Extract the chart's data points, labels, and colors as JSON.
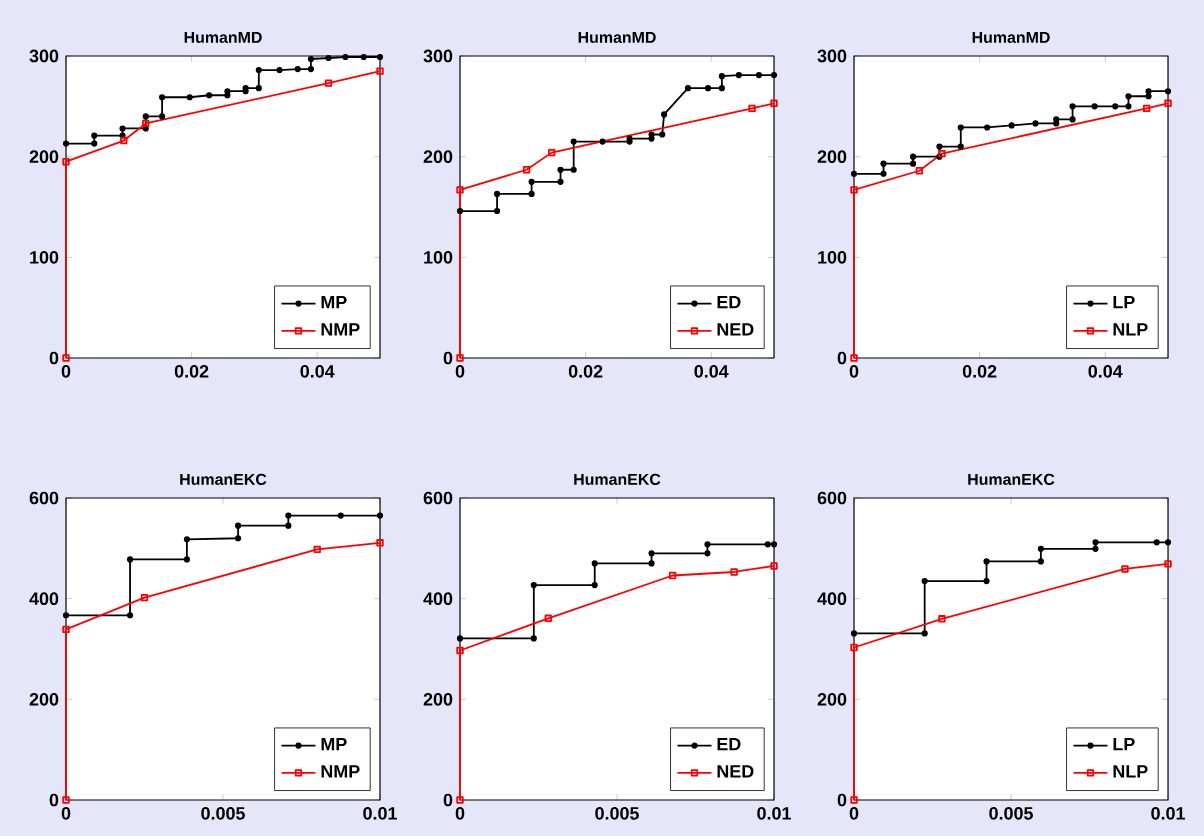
{
  "chart_data": [
    {
      "type": "line",
      "title": "HumanMD",
      "xlim": [
        0,
        0.05
      ],
      "ylim": [
        0,
        300
      ],
      "xticks": [
        0,
        0.02,
        0.04
      ],
      "yticks": [
        0,
        100,
        200,
        300
      ],
      "legend": "bottom right",
      "series": [
        {
          "name": "MP",
          "color": "#000000",
          "marker": "circle",
          "x": [
            0,
            0.0045,
            0.0045,
            0.009,
            0.009,
            0.0127,
            0.0127,
            0.0153,
            0.0153,
            0.0197,
            0.0228,
            0.0257,
            0.0257,
            0.0286,
            0.0286,
            0.0307,
            0.0307,
            0.034,
            0.0369,
            0.039,
            0.039,
            0.0418,
            0.0445,
            0.0474,
            0.05
          ],
          "values": [
            213,
            213,
            221,
            221,
            228,
            228,
            240,
            240,
            259,
            259,
            261,
            261,
            265,
            265,
            268,
            268,
            286,
            286,
            287,
            287,
            297,
            298,
            299,
            299,
            299
          ]
        },
        {
          "name": "NMP",
          "color": "#ff0000",
          "marker": "square",
          "x": [
            0,
            0,
            0.0092,
            0.0127,
            0.0418,
            0.05
          ],
          "values": [
            0,
            195,
            216,
            233,
            273,
            285
          ]
        }
      ]
    },
    {
      "type": "line",
      "title": "HumanMD",
      "xlim": [
        0,
        0.05
      ],
      "ylim": [
        0,
        300
      ],
      "xticks": [
        0,
        0.02,
        0.04
      ],
      "yticks": [
        0,
        100,
        200,
        300
      ],
      "legend": "bottom right",
      "series": [
        {
          "name": "ED",
          "color": "#000000",
          "marker": "circle",
          "x": [
            0,
            0.0059,
            0.0059,
            0.0114,
            0.0114,
            0.016,
            0.016,
            0.0181,
            0.0181,
            0.0227,
            0.027,
            0.027,
            0.0305,
            0.0305,
            0.0322,
            0.0325,
            0.0363,
            0.0395,
            0.0417,
            0.0417,
            0.0444,
            0.0476,
            0.05
          ],
          "values": [
            146,
            146,
            163,
            163,
            175,
            175,
            187,
            187,
            215,
            215,
            215,
            218,
            218,
            222,
            222,
            242,
            268,
            268,
            268,
            280,
            281,
            281,
            281
          ]
        },
        {
          "name": "NED",
          "color": "#ff0000",
          "marker": "square",
          "x": [
            0,
            0,
            0.0106,
            0.0146,
            0.0465,
            0.05
          ],
          "values": [
            0,
            167,
            187,
            204,
            248,
            253
          ]
        }
      ]
    },
    {
      "type": "line",
      "title": "HumanMD",
      "xlim": [
        0,
        0.05
      ],
      "ylim": [
        0,
        300
      ],
      "xticks": [
        0,
        0.02,
        0.04
      ],
      "yticks": [
        0,
        100,
        200,
        300
      ],
      "legend": "bottom right",
      "series": [
        {
          "name": "LP",
          "color": "#000000",
          "marker": "circle",
          "x": [
            0,
            0.0047,
            0.0047,
            0.0094,
            0.0094,
            0.0136,
            0.0136,
            0.017,
            0.017,
            0.0212,
            0.0251,
            0.0289,
            0.0322,
            0.0322,
            0.0348,
            0.0348,
            0.0383,
            0.0416,
            0.0437,
            0.0437,
            0.0469,
            0.0469,
            0.05
          ],
          "values": [
            183,
            183,
            193,
            193,
            200,
            200,
            210,
            210,
            229,
            229,
            231,
            233,
            233,
            237,
            237,
            250,
            250,
            250,
            250,
            260,
            260,
            265,
            265
          ]
        },
        {
          "name": "NLP",
          "color": "#ff0000",
          "marker": "square",
          "x": [
            0,
            0,
            0.0104,
            0.014,
            0.0466,
            0.05
          ],
          "values": [
            0,
            167,
            186,
            203,
            248,
            253
          ]
        }
      ]
    },
    {
      "type": "line",
      "title": "HumanEKC",
      "xlim": [
        0,
        0.01
      ],
      "ylim": [
        0,
        600
      ],
      "xticks": [
        0,
        0.005,
        0.01
      ],
      "yticks": [
        0,
        200,
        400,
        600
      ],
      "legend": "bottom right",
      "series": [
        {
          "name": "MP",
          "color": "#000000",
          "marker": "circle",
          "x": [
            0,
            0.00204,
            0.00204,
            0.00385,
            0.00385,
            0.00548,
            0.00548,
            0.00708,
            0.00708,
            0.00875,
            0.01
          ],
          "values": [
            367,
            367,
            478,
            478,
            518,
            520,
            545,
            545,
            565,
            565,
            565
          ]
        },
        {
          "name": "NMP",
          "color": "#ff0000",
          "marker": "square",
          "x": [
            0,
            0,
            0.0025,
            0.008,
            0.01
          ],
          "values": [
            0,
            339,
            402,
            498,
            511
          ]
        }
      ]
    },
    {
      "type": "line",
      "title": "HumanEKC",
      "xlim": [
        0,
        0.01
      ],
      "ylim": [
        0,
        600
      ],
      "xticks": [
        0,
        0.005,
        0.01
      ],
      "yticks": [
        0,
        200,
        400,
        600
      ],
      "legend": "bottom right",
      "series": [
        {
          "name": "ED",
          "color": "#000000",
          "marker": "circle",
          "x": [
            0,
            0.00235,
            0.00235,
            0.00429,
            0.00429,
            0.0061,
            0.0061,
            0.00788,
            0.00788,
            0.0098,
            0.01
          ],
          "values": [
            321,
            321,
            427,
            427,
            470,
            470,
            490,
            490,
            508,
            508,
            508
          ]
        },
        {
          "name": "NED",
          "color": "#ff0000",
          "marker": "square",
          "x": [
            0,
            0,
            0.00281,
            0.00677,
            0.00873,
            0.01
          ],
          "values": [
            0,
            297,
            361,
            446,
            453,
            465
          ]
        }
      ]
    },
    {
      "type": "line",
      "title": "HumanEKC",
      "xlim": [
        0,
        0.01
      ],
      "ylim": [
        0,
        600
      ],
      "xticks": [
        0,
        0.005,
        0.01
      ],
      "yticks": [
        0,
        200,
        400,
        600
      ],
      "legend": "bottom right",
      "series": [
        {
          "name": "LP",
          "color": "#000000",
          "marker": "circle",
          "x": [
            0,
            0.00225,
            0.00225,
            0.00422,
            0.00422,
            0.00595,
            0.00595,
            0.00769,
            0.00769,
            0.00964,
            0.01
          ],
          "values": [
            331,
            331,
            435,
            435,
            474,
            474,
            499,
            499,
            512,
            512,
            512
          ]
        },
        {
          "name": "NLP",
          "color": "#ff0000",
          "marker": "square",
          "x": [
            0,
            0,
            0.0028,
            0.00863,
            0.01
          ],
          "values": [
            0,
            303,
            360,
            459,
            469
          ]
        }
      ]
    }
  ]
}
